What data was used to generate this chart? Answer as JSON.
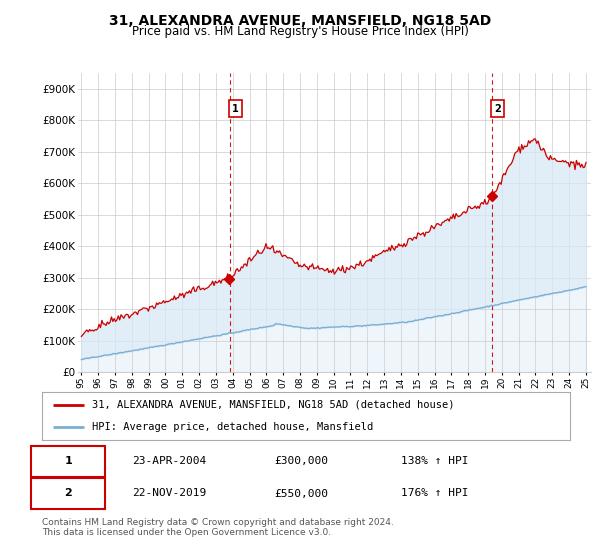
{
  "title": "31, ALEXANDRA AVENUE, MANSFIELD, NG18 5AD",
  "subtitle": "Price paid vs. HM Land Registry's House Price Index (HPI)",
  "ylabel_ticks": [
    "£0",
    "£100K",
    "£200K",
    "£300K",
    "£400K",
    "£500K",
    "£600K",
    "£700K",
    "£800K",
    "£900K"
  ],
  "ytick_values": [
    0,
    100000,
    200000,
    300000,
    400000,
    500000,
    600000,
    700000,
    800000,
    900000
  ],
  "ylim": [
    0,
    950000
  ],
  "xlim": [
    1995.3,
    2025.8
  ],
  "sale1": {
    "date_num": 2004.31,
    "price": 300000,
    "label": "1"
  },
  "sale2": {
    "date_num": 2019.9,
    "price": 550000,
    "label": "2"
  },
  "legend_line1": "31, ALEXANDRA AVENUE, MANSFIELD, NG18 5AD (detached house)",
  "legend_line2": "HPI: Average price, detached house, Mansfield",
  "table_row1": [
    "1",
    "23-APR-2004",
    "£300,000",
    "138% ↑ HPI"
  ],
  "table_row2": [
    "2",
    "22-NOV-2019",
    "£550,000",
    "176% ↑ HPI"
  ],
  "footer": "Contains HM Land Registry data © Crown copyright and database right 2024.\nThis data is licensed under the Open Government Licence v3.0.",
  "hpi_color": "#7bafd4",
  "hpi_fill_color": "#d6e8f5",
  "sale_color": "#cc0000",
  "vline_color": "#cc0000",
  "background_color": "#ffffff",
  "grid_color": "#cccccc",
  "xtick_labels": [
    "95",
    "96",
    "97",
    "98",
    "99",
    "00",
    "01",
    "02",
    "03",
    "04",
    "05",
    "06",
    "07",
    "08",
    "09",
    "10",
    "11",
    "12",
    "13",
    "14",
    "15",
    "16",
    "17",
    "18",
    "19",
    "20",
    "21",
    "22",
    "23",
    "24",
    "25"
  ]
}
